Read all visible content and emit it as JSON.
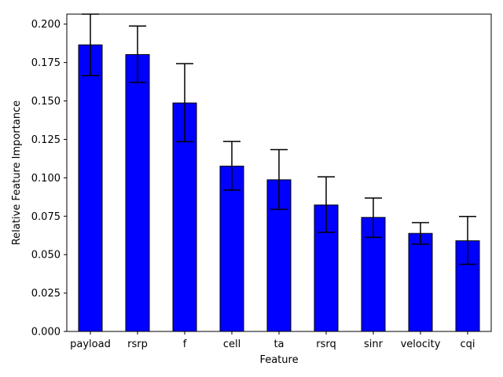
{
  "chart_data": {
    "type": "bar",
    "categories": [
      "payload",
      "rsrp",
      "f",
      "cell",
      "ta",
      "rsrq",
      "sinr",
      "velocity",
      "cqi"
    ],
    "values": [
      0.1865,
      0.1802,
      0.1487,
      0.1076,
      0.0987,
      0.0823,
      0.0742,
      0.0638,
      0.059
    ],
    "error_low": [
      0.1665,
      0.162,
      0.1235,
      0.092,
      0.0795,
      0.0645,
      0.0612,
      0.0568,
      0.0437
    ],
    "error_high": [
      0.2065,
      0.1988,
      0.1743,
      0.1236,
      0.1183,
      0.1006,
      0.0868,
      0.0708,
      0.0748
    ],
    "xlabel": "Feature",
    "ylabel": "Relative Feature Importance",
    "ylim": [
      0,
      0.2065
    ],
    "yticks": [
      "0.000",
      "0.025",
      "0.050",
      "0.075",
      "0.100",
      "0.125",
      "0.150",
      "0.175",
      "0.200"
    ],
    "bar_color": "#0000ff",
    "edge_color": "#000000",
    "grid": false
  }
}
